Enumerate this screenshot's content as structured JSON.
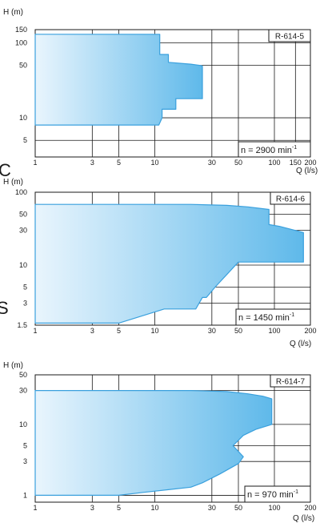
{
  "colors": {
    "fill_light": "#e9f5fd",
    "fill_dark": "#5fb9ea",
    "outline": "#3aa0dd",
    "grid": "#1a1a1a"
  },
  "stray_marks": {
    "c": "C",
    "s": "S"
  },
  "chart_data": [
    {
      "type": "area",
      "code": "R-614-5",
      "speed_text": "n = 2900 min",
      "speed_exp": "-1",
      "ylabel": "H (m)",
      "xlabel": "Q (l/s)",
      "x_scale": "log",
      "y_scale": "log",
      "xlim": [
        1,
        200
      ],
      "ylim": [
        3,
        150
      ],
      "x_ticks": [
        1,
        3,
        5,
        10,
        30,
        50,
        100,
        150,
        200
      ],
      "y_ticks": [
        5,
        10,
        50,
        100,
        150
      ],
      "x_grid": [
        1,
        3,
        5,
        10,
        30,
        50,
        100,
        150,
        200
      ],
      "y_grid": [
        5,
        10,
        50,
        100,
        150
      ],
      "envelope": [
        [
          1,
          130
        ],
        [
          11,
          130
        ],
        [
          11,
          70
        ],
        [
          13,
          70
        ],
        [
          13,
          55
        ],
        [
          20,
          52
        ],
        [
          24,
          50
        ],
        [
          25,
          49
        ],
        [
          25,
          18
        ],
        [
          15,
          18
        ],
        [
          15,
          13
        ],
        [
          11.5,
          13
        ],
        [
          11.5,
          10
        ],
        [
          10.8,
          8
        ],
        [
          1,
          8
        ]
      ]
    },
    {
      "type": "area",
      "code": "R-614-6",
      "speed_text": "n = 1450 min",
      "speed_exp": "-1",
      "ylabel": "H (m)",
      "xlabel": "Q (l/s)",
      "x_scale": "log",
      "y_scale": "log",
      "xlim": [
        1,
        200
      ],
      "ylim": [
        1.5,
        100
      ],
      "x_ticks": [
        1,
        3,
        5,
        10,
        30,
        50,
        100,
        200
      ],
      "y_ticks": [
        1.5,
        3,
        5,
        10,
        30,
        50,
        100
      ],
      "x_grid": [
        1,
        3,
        5,
        10,
        30,
        50,
        100,
        200
      ],
      "y_grid": [
        3,
        5,
        10,
        30,
        50
      ],
      "envelope": [
        [
          1,
          68
        ],
        [
          20,
          68
        ],
        [
          40,
          66
        ],
        [
          60,
          63
        ],
        [
          90,
          58
        ],
        [
          90,
          36
        ],
        [
          110,
          34
        ],
        [
          175,
          28
        ],
        [
          175,
          11
        ],
        [
          50,
          11
        ],
        [
          32,
          5
        ],
        [
          27,
          3.6
        ],
        [
          25,
          3.6
        ],
        [
          22,
          2.5
        ],
        [
          12,
          2.5
        ],
        [
          7,
          1.9
        ],
        [
          5,
          1.6
        ],
        [
          1,
          1.6
        ]
      ]
    },
    {
      "type": "area",
      "code": "R-614-7",
      "speed_text": "n = 970 min",
      "speed_exp": "-1",
      "ylabel": "H (m)",
      "xlabel": "Q (l/s)",
      "x_scale": "log",
      "y_scale": "log",
      "xlim": [
        1,
        200
      ],
      "ylim": [
        0.8,
        50
      ],
      "x_ticks": [
        1,
        3,
        5,
        10,
        30,
        50,
        100,
        200
      ],
      "y_ticks": [
        1,
        3,
        5,
        10,
        30,
        50
      ],
      "x_grid": [
        1,
        3,
        5,
        10,
        30,
        50,
        100,
        200
      ],
      "y_grid": [
        1,
        3,
        5,
        10,
        30
      ],
      "envelope": [
        [
          1,
          30
        ],
        [
          20,
          30
        ],
        [
          40,
          29
        ],
        [
          60,
          27
        ],
        [
          80,
          25
        ],
        [
          95,
          23
        ],
        [
          95,
          10
        ],
        [
          70,
          8.5
        ],
        [
          55,
          7
        ],
        [
          45,
          5
        ],
        [
          55,
          3.5
        ],
        [
          50,
          2.8
        ],
        [
          35,
          2
        ],
        [
          25,
          1.5
        ],
        [
          20,
          1.3
        ],
        [
          13,
          1.2
        ],
        [
          8,
          1.1
        ],
        [
          5,
          1.0
        ],
        [
          1,
          1.0
        ]
      ]
    }
  ]
}
